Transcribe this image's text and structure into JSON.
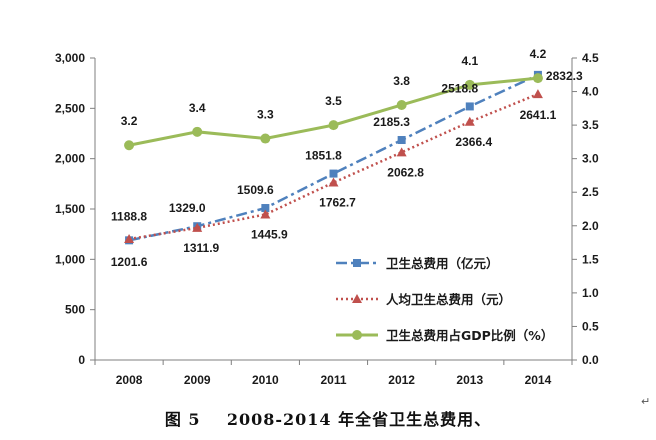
{
  "caption": "图 5    2008-2014 年全省卫生总费用、",
  "corner_mark": "↵",
  "chart_data": {
    "type": "line",
    "categories": [
      "2008",
      "2009",
      "2010",
      "2011",
      "2012",
      "2013",
      "2014"
    ],
    "left_axis": {
      "min": 0,
      "max": 3000,
      "step": 500,
      "ticks": [
        "0",
        "500",
        "1,000",
        "1,500",
        "2,000",
        "2,500",
        "3,000"
      ]
    },
    "right_axis": {
      "min": 0,
      "max": 4.5,
      "step": 0.5,
      "ticks": [
        "0.0",
        "0.5",
        "1.0",
        "1.5",
        "2.0",
        "2.5",
        "3.0",
        "3.5",
        "4.0",
        "4.5"
      ]
    },
    "grid": false,
    "legend_position": "lower-right",
    "series": [
      {
        "name": "卫生总费用（亿元）",
        "axis": "left",
        "color": "#4f81bd",
        "style": "dash-dot",
        "marker": "square",
        "values": [
          1188.8,
          1329.0,
          1509.6,
          1851.8,
          2185.3,
          2518.8,
          2832.3
        ],
        "labels": [
          "1188.8",
          "1329.0",
          "1509.6",
          "1851.8",
          "2185.3",
          "2518.8",
          "2832.3"
        ]
      },
      {
        "name": "人均卫生总费用（元）",
        "axis": "left",
        "color": "#c0504d",
        "style": "dotted",
        "marker": "triangle",
        "values": [
          1201.6,
          1311.9,
          1445.9,
          1762.7,
          2062.8,
          2366.4,
          2641.1
        ],
        "labels": [
          "1201.6",
          "1311.9",
          "1445.9",
          "1762.7",
          "2062.8",
          "2366.4",
          "2641.1"
        ]
      },
      {
        "name": "卫生总费用占GDP比例（%）",
        "axis": "right",
        "color": "#9bbb59",
        "style": "solid",
        "marker": "circle",
        "values": [
          3.2,
          3.4,
          3.3,
          3.5,
          3.8,
          4.1,
          4.2
        ],
        "labels": [
          "3.2",
          "3.4",
          "3.3",
          "3.5",
          "3.8",
          "4.1",
          "4.2"
        ]
      }
    ]
  }
}
